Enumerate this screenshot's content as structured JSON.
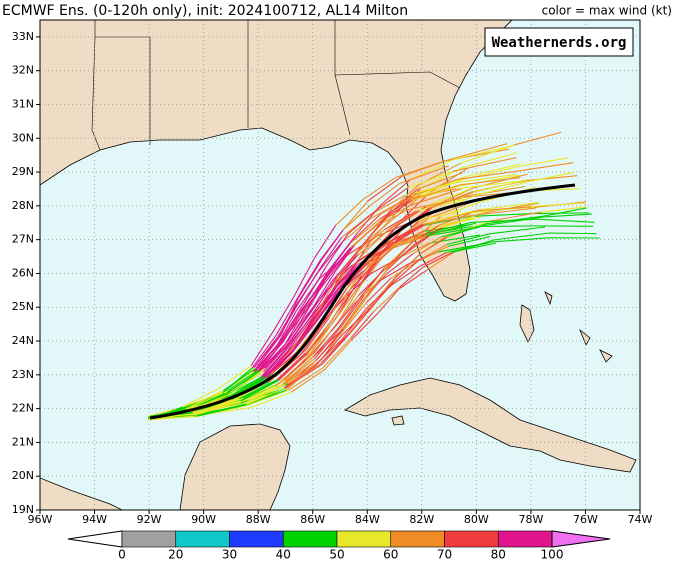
{
  "title": "ECMWF Ens. (0-120h only), init: 2024100712, AL14 Milton",
  "legend_note": "color = max wind (kt)",
  "watermark": "Weathernerds.org",
  "map": {
    "xlim": [
      -96,
      -74
    ],
    "ylim": [
      19,
      33.5
    ],
    "xticks": [
      {
        "value": -96,
        "label": "96W"
      },
      {
        "value": -94,
        "label": "94W"
      },
      {
        "value": -92,
        "label": "92W"
      },
      {
        "value": -90,
        "label": "90W"
      },
      {
        "value": -88,
        "label": "88W"
      },
      {
        "value": -86,
        "label": "86W"
      },
      {
        "value": -84,
        "label": "84W"
      },
      {
        "value": -82,
        "label": "82W"
      },
      {
        "value": -80,
        "label": "80W"
      },
      {
        "value": -78,
        "label": "78W"
      },
      {
        "value": -76,
        "label": "76W"
      },
      {
        "value": -74,
        "label": "74W"
      }
    ],
    "yticks": [
      {
        "value": 19,
        "label": "19N"
      },
      {
        "value": 20,
        "label": "20N"
      },
      {
        "value": 21,
        "label": "21N"
      },
      {
        "value": 22,
        "label": "22N"
      },
      {
        "value": 23,
        "label": "23N"
      },
      {
        "value": 24,
        "label": "24N"
      },
      {
        "value": 25,
        "label": "25N"
      },
      {
        "value": 26,
        "label": "26N"
      },
      {
        "value": 27,
        "label": "27N"
      },
      {
        "value": 28,
        "label": "28N"
      },
      {
        "value": 29,
        "label": "29N"
      },
      {
        "value": 30,
        "label": "30N"
      },
      {
        "value": 31,
        "label": "31N"
      },
      {
        "value": 32,
        "label": "32N"
      },
      {
        "value": 33,
        "label": "33N"
      }
    ]
  },
  "colorbar": {
    "ticks": [
      0,
      20,
      30,
      40,
      50,
      60,
      70,
      80,
      100
    ],
    "colors": [
      "#ffffff",
      "#a0a0a0",
      "#10c8c8",
      "#1e3cff",
      "#00d200",
      "#e8e82a",
      "#f08c28",
      "#f03c3c",
      "#e0148c",
      "#f070f0"
    ]
  }
}
